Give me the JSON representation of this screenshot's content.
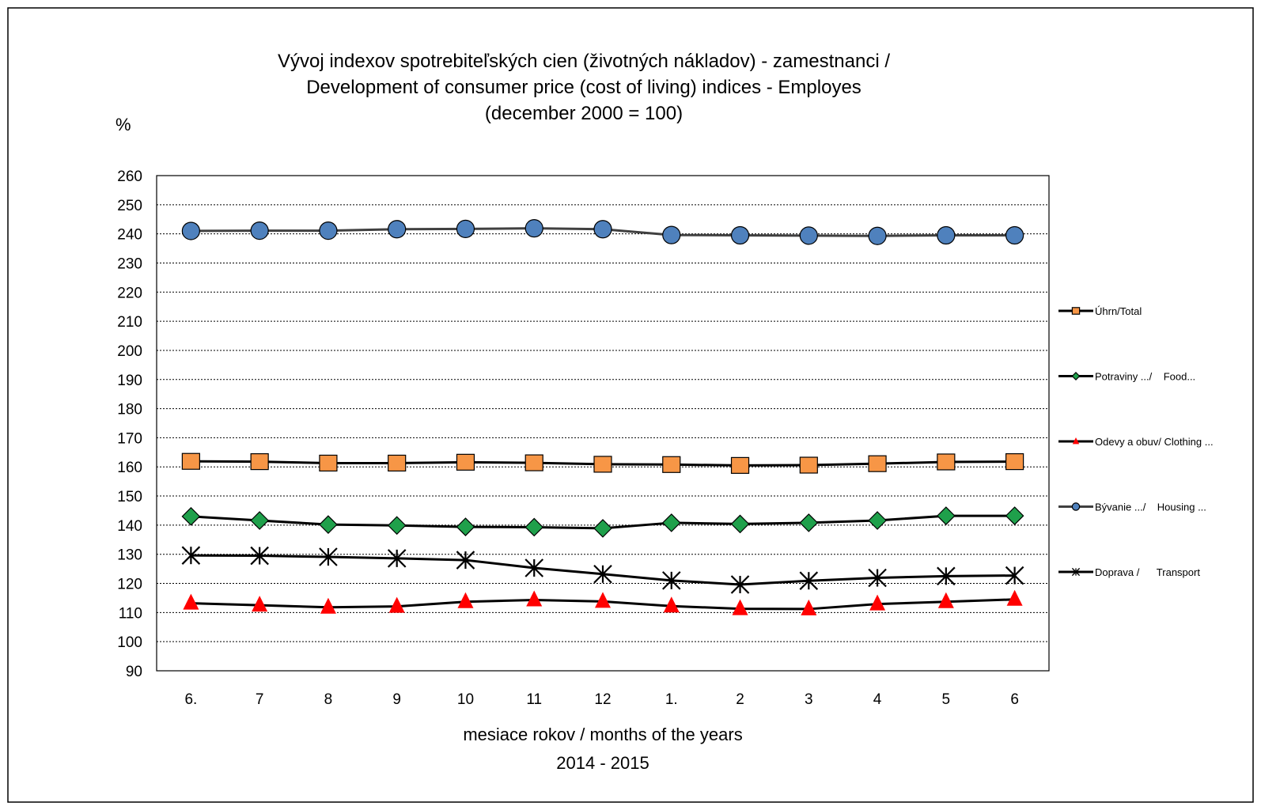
{
  "chart_data": {
    "type": "line",
    "title_lines": [
      "Vývoj indexov spotrebiteľských cien (životných nákladov) - zamestnanci /",
      "Development of consumer price (cost of living) indices - Employes",
      "(december 2000 = 100)"
    ],
    "ylabel": "%",
    "xlabel_lines": [
      "mesiace rokov / months of the years",
      "2014 - 2015"
    ],
    "ylim": [
      90,
      260
    ],
    "y_ticks": [
      90,
      100,
      110,
      120,
      130,
      140,
      150,
      160,
      170,
      180,
      190,
      200,
      210,
      220,
      230,
      240,
      250,
      260
    ],
    "grid": true,
    "legend_position": "right",
    "categories": [
      "6.",
      "7",
      "8",
      "9",
      "10",
      "11",
      "12",
      "1.",
      "2",
      "3",
      "4",
      "5",
      "6"
    ],
    "series": [
      {
        "name": "Úhrn/Total",
        "marker": "square",
        "marker_color": "#F79646",
        "line_color": "#000000",
        "values": [
          161.9,
          161.8,
          161.3,
          161.3,
          161.6,
          161.4,
          160.9,
          160.8,
          160.5,
          160.6,
          161.1,
          161.7,
          161.8
        ]
      },
      {
        "name": "Potraviny .../    Food...",
        "marker": "diamond",
        "marker_color": "#1FA04B",
        "line_color": "#000000",
        "values": [
          143.0,
          141.6,
          140.2,
          139.9,
          139.4,
          139.3,
          138.9,
          140.8,
          140.4,
          140.8,
          141.6,
          143.2,
          143.2
        ]
      },
      {
        "name": "Odevy a obuv/ Clothing ...",
        "marker": "triangle",
        "marker_color": "#FF0000",
        "line_color": "#000000",
        "values": [
          113.2,
          112.5,
          111.8,
          112.1,
          113.7,
          114.3,
          113.8,
          112.2,
          111.3,
          111.2,
          112.9,
          113.7,
          114.5
        ]
      },
      {
        "name": "Bývanie .../    Housing ...",
        "marker": "circle",
        "marker_color": "#4F81BD",
        "line_color": "#404040",
        "values": [
          241.0,
          241.1,
          241.1,
          241.6,
          241.7,
          241.9,
          241.6,
          239.6,
          239.5,
          239.4,
          239.3,
          239.5,
          239.5
        ]
      },
      {
        "name": "Doprava /      Transport",
        "marker": "asterisk",
        "marker_color": "#000000",
        "line_color": "#000000",
        "values": [
          129.6,
          129.5,
          129.1,
          128.6,
          128.0,
          125.3,
          123.2,
          121.0,
          119.6,
          120.9,
          121.9,
          122.5,
          122.7
        ]
      }
    ]
  }
}
